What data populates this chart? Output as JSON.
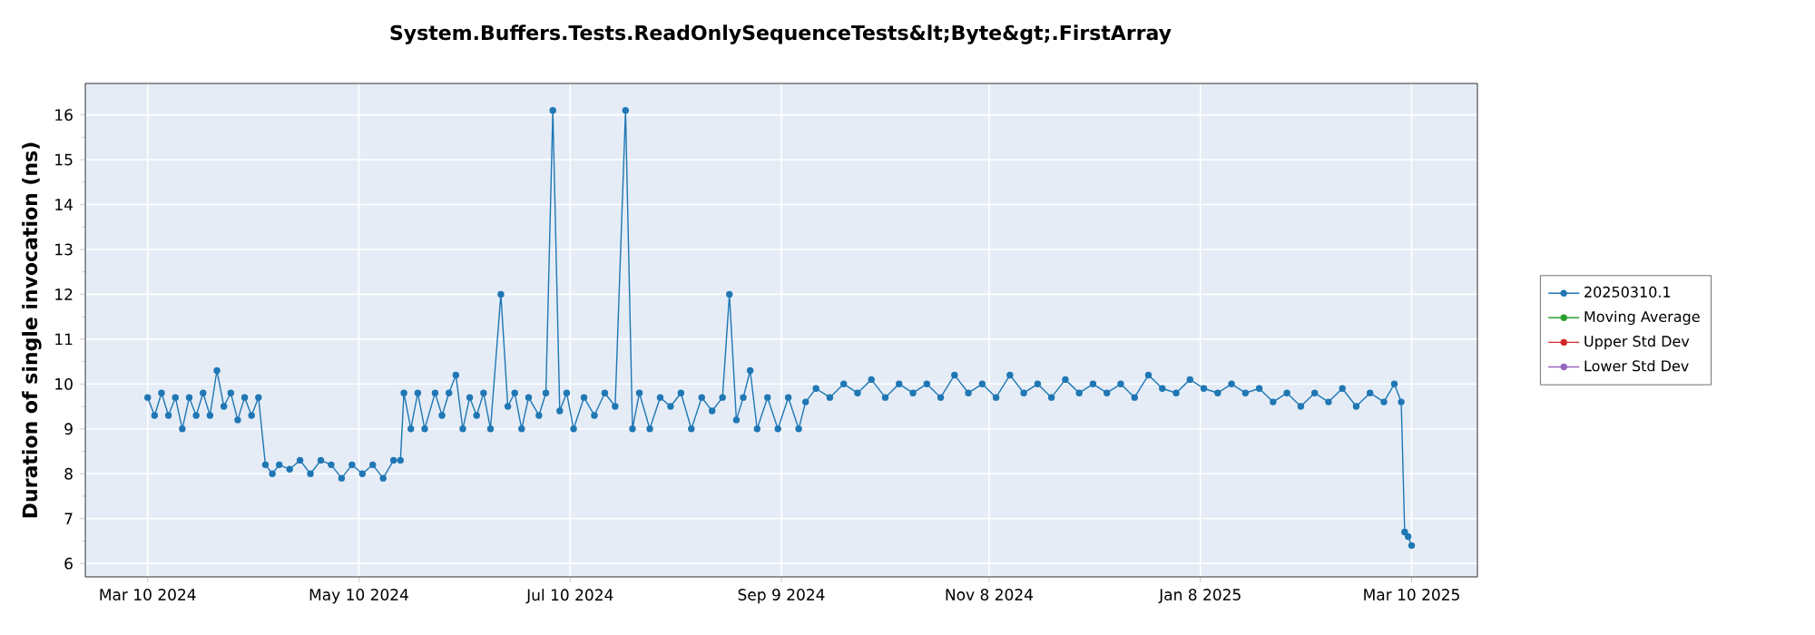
{
  "chart_data": {
    "type": "line",
    "title": "System.Buffers.Tests.ReadOnlySequenceTests&lt;Byte&gt;.FirstArray",
    "ylabel": "Duration of single invocation (ns)",
    "x": [
      "2024-03-10",
      "2024-03-12",
      "2024-03-14",
      "2024-03-16",
      "2024-03-18",
      "2024-03-20",
      "2024-03-22",
      "2024-03-24",
      "2024-03-26",
      "2024-03-28",
      "2024-03-30",
      "2024-04-01",
      "2024-04-03",
      "2024-04-05",
      "2024-04-07",
      "2024-04-09",
      "2024-04-11",
      "2024-04-13",
      "2024-04-15",
      "2024-04-17",
      "2024-04-20",
      "2024-04-23",
      "2024-04-26",
      "2024-04-29",
      "2024-05-02",
      "2024-05-05",
      "2024-05-08",
      "2024-05-11",
      "2024-05-14",
      "2024-05-17",
      "2024-05-20",
      "2024-05-22",
      "2024-05-23",
      "2024-05-25",
      "2024-05-27",
      "2024-05-29",
      "2024-06-01",
      "2024-06-03",
      "2024-06-05",
      "2024-06-07",
      "2024-06-09",
      "2024-06-11",
      "2024-06-13",
      "2024-06-15",
      "2024-06-17",
      "2024-06-20",
      "2024-06-22",
      "2024-06-24",
      "2024-06-26",
      "2024-06-28",
      "2024-07-01",
      "2024-07-03",
      "2024-07-05",
      "2024-07-07",
      "2024-07-09",
      "2024-07-11",
      "2024-07-14",
      "2024-07-17",
      "2024-07-20",
      "2024-07-23",
      "2024-07-26",
      "2024-07-28",
      "2024-07-30",
      "2024-08-02",
      "2024-08-05",
      "2024-08-08",
      "2024-08-11",
      "2024-08-14",
      "2024-08-17",
      "2024-08-20",
      "2024-08-23",
      "2024-08-25",
      "2024-08-27",
      "2024-08-29",
      "2024-08-31",
      "2024-09-02",
      "2024-09-05",
      "2024-09-08",
      "2024-09-11",
      "2024-09-14",
      "2024-09-16",
      "2024-09-19",
      "2024-09-23",
      "2024-09-27",
      "2024-10-01",
      "2024-10-05",
      "2024-10-09",
      "2024-10-13",
      "2024-10-17",
      "2024-10-21",
      "2024-10-25",
      "2024-10-29",
      "2024-11-02",
      "2024-11-06",
      "2024-11-10",
      "2024-11-14",
      "2024-11-18",
      "2024-11-22",
      "2024-11-26",
      "2024-11-30",
      "2024-12-04",
      "2024-12-08",
      "2024-12-12",
      "2024-12-16",
      "2024-12-20",
      "2024-12-24",
      "2024-12-28",
      "2025-01-01",
      "2025-01-05",
      "2025-01-09",
      "2025-01-13",
      "2025-01-17",
      "2025-01-21",
      "2025-01-25",
      "2025-01-29",
      "2025-02-02",
      "2025-02-06",
      "2025-02-10",
      "2025-02-14",
      "2025-02-18",
      "2025-02-22",
      "2025-02-26",
      "2025-03-02",
      "2025-03-05",
      "2025-03-07",
      "2025-03-08",
      "2025-03-09",
      "2025-03-10"
    ],
    "series": [
      {
        "name": "20250310.1",
        "color": "#1f77b4",
        "values": [
          9.7,
          9.3,
          9.8,
          9.3,
          9.7,
          9.0,
          9.7,
          9.3,
          9.8,
          9.3,
          10.3,
          9.5,
          9.8,
          9.2,
          9.7,
          9.3,
          9.7,
          8.2,
          8.0,
          8.2,
          8.1,
          8.3,
          8.0,
          8.3,
          8.2,
          7.9,
          8.2,
          8.0,
          8.2,
          7.9,
          8.3,
          8.3,
          9.8,
          9.0,
          9.8,
          9.0,
          9.8,
          9.3,
          9.8,
          10.2,
          9.0,
          9.7,
          9.3,
          9.8,
          9.0,
          12.0,
          9.5,
          9.8,
          9.0,
          9.7,
          9.3,
          9.8,
          16.1,
          9.4,
          9.8,
          9.0,
          9.7,
          9.3,
          9.8,
          9.5,
          16.1,
          9.0,
          9.8,
          9.0,
          9.7,
          9.5,
          9.8,
          9.0,
          9.7,
          9.4,
          9.7,
          12.0,
          9.2,
          9.7,
          10.3,
          9.0,
          9.7,
          9.0,
          9.7,
          9.0,
          9.6,
          9.9,
          9.7,
          10.0,
          9.8,
          10.1,
          9.7,
          10.0,
          9.8,
          10.0,
          9.7,
          10.2,
          9.8,
          10.0,
          9.7,
          10.2,
          9.8,
          10.0,
          9.7,
          10.1,
          9.8,
          10.0,
          9.8,
          10.0,
          9.7,
          10.2,
          9.9,
          9.8,
          10.1,
          9.9,
          9.8,
          10.0,
          9.8,
          9.9,
          9.6,
          9.8,
          9.5,
          9.8,
          9.6,
          9.9,
          9.5,
          9.8,
          9.6,
          10.0,
          9.6,
          6.7,
          6.6,
          6.4
        ]
      },
      {
        "name": "Moving Average",
        "color": "#2ca02c",
        "values": [
          null,
          null,
          null,
          null,
          null,
          null,
          null,
          null,
          null,
          null,
          null,
          null,
          null,
          null,
          null,
          null,
          null,
          null,
          null,
          null,
          null,
          null,
          null,
          null,
          null,
          null,
          null,
          null,
          null,
          null,
          null,
          null,
          null,
          null,
          null,
          null,
          null,
          null,
          null,
          null,
          null,
          null,
          null,
          null,
          null,
          null,
          null,
          null,
          null,
          null,
          null,
          null,
          null,
          null,
          null,
          null,
          null,
          null,
          null,
          null,
          null,
          null,
          null,
          null,
          null,
          null,
          null,
          null,
          null,
          null,
          null,
          null,
          null,
          null,
          null,
          null,
          null,
          null,
          null,
          null,
          null,
          null,
          null,
          null,
          null,
          null,
          null,
          null,
          null,
          null,
          null,
          null,
          null,
          null,
          null,
          null,
          null,
          null,
          null,
          null,
          null,
          null,
          null,
          null,
          null,
          null,
          null,
          null,
          null,
          null,
          null,
          null,
          null,
          null,
          null,
          null,
          null,
          null,
          null,
          null,
          null,
          null,
          null,
          null,
          null,
          null,
          null,
          null
        ]
      },
      {
        "name": "Upper Std Dev",
        "color": "#d62728",
        "values": [
          null,
          null,
          null,
          null,
          null,
          null,
          null,
          null,
          null,
          null,
          null,
          null,
          null,
          null,
          null,
          null,
          null,
          null,
          null,
          null,
          null,
          null,
          null,
          null,
          null,
          null,
          null,
          null,
          null,
          null,
          null,
          null,
          null,
          null,
          null,
          null,
          null,
          null,
          null,
          null,
          null,
          null,
          null,
          null,
          null,
          null,
          null,
          null,
          null,
          null,
          null,
          null,
          null,
          null,
          null,
          null,
          null,
          null,
          null,
          null,
          null,
          null,
          null,
          null,
          null,
          null,
          null,
          null,
          null,
          null,
          null,
          null,
          null,
          null,
          null,
          null,
          null,
          null,
          null,
          null,
          null,
          null,
          null,
          null,
          null,
          null,
          null,
          null,
          null,
          null,
          null,
          null,
          null,
          null,
          null,
          null,
          null,
          null,
          null,
          null,
          null,
          null,
          null,
          null,
          null,
          null,
          null,
          null,
          null,
          null,
          null,
          null,
          null,
          null,
          null,
          null,
          null,
          null,
          null,
          null,
          null,
          null,
          null,
          null,
          null,
          null,
          null,
          null
        ]
      },
      {
        "name": "Lower Std Dev",
        "color": "#9467bd",
        "values": [
          null,
          null,
          null,
          null,
          null,
          null,
          null,
          null,
          null,
          null,
          null,
          null,
          null,
          null,
          null,
          null,
          null,
          null,
          null,
          null,
          null,
          null,
          null,
          null,
          null,
          null,
          null,
          null,
          null,
          null,
          null,
          null,
          null,
          null,
          null,
          null,
          null,
          null,
          null,
          null,
          null,
          null,
          null,
          null,
          null,
          null,
          null,
          null,
          null,
          null,
          null,
          null,
          null,
          null,
          null,
          null,
          null,
          null,
          null,
          null,
          null,
          null,
          null,
          null,
          null,
          null,
          null,
          null,
          null,
          null,
          null,
          null,
          null,
          null,
          null,
          null,
          null,
          null,
          null,
          null,
          null,
          null,
          null,
          null,
          null,
          null,
          null,
          null,
          null,
          null,
          null,
          null,
          null,
          null,
          null,
          null,
          null,
          null,
          null,
          null,
          null,
          null,
          null,
          null,
          null,
          null,
          null,
          null,
          null,
          null,
          null,
          null,
          null,
          null,
          null,
          null,
          null,
          null,
          null,
          null,
          null,
          null,
          null,
          null,
          null,
          null,
          null,
          null
        ]
      }
    ],
    "xlim": [
      "2024-02-21",
      "2025-03-29"
    ],
    "ylim": [
      5.7,
      16.7
    ],
    "xticks": [
      {
        "value": "2024-03-10",
        "label": "Mar 10 2024"
      },
      {
        "value": "2024-05-10",
        "label": "May 10 2024"
      },
      {
        "value": "2024-07-10",
        "label": "Jul 10 2024"
      },
      {
        "value": "2024-09-09",
        "label": "Sep 9 2024"
      },
      {
        "value": "2024-11-08",
        "label": "Nov 8 2024"
      },
      {
        "value": "2025-01-08",
        "label": "Jan 8 2025"
      },
      {
        "value": "2025-03-10",
        "label": "Mar 10 2025"
      }
    ],
    "yticks": [
      6,
      7,
      8,
      9,
      10,
      11,
      12,
      13,
      14,
      15,
      16
    ],
    "grid": true,
    "legend": "right",
    "marker": "circle",
    "line_style": "solid"
  }
}
